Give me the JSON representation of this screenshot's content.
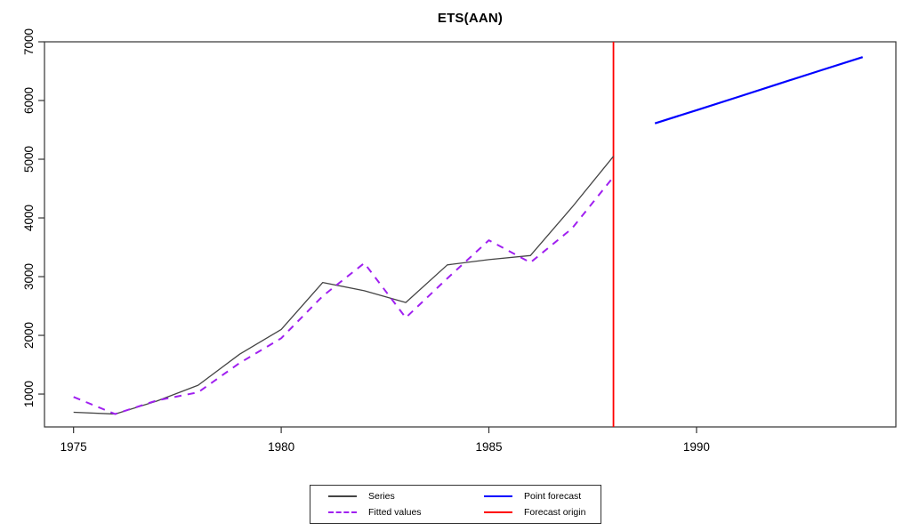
{
  "chart_data": {
    "type": "line",
    "title": "ETS(AAN)",
    "xlabel": "",
    "ylabel": "",
    "xlim": [
      1974.3,
      1994.8
    ],
    "ylim": [
      440,
      7000
    ],
    "x_ticks": [
      1975,
      1980,
      1985,
      1990
    ],
    "y_ticks": [
      1000,
      2000,
      3000,
      4000,
      5000,
      6000,
      7000
    ],
    "grid": false,
    "legend_position": "bottom-center",
    "series": [
      {
        "name": "Series",
        "color": "#444444",
        "style": "solid",
        "width": 1.3,
        "x": [
          1975,
          1976,
          1977,
          1978,
          1979,
          1980,
          1981,
          1982,
          1983,
          1984,
          1985,
          1986,
          1987,
          1988
        ],
        "values": [
          690,
          660,
          880,
          1150,
          1680,
          2100,
          2900,
          2760,
          2560,
          3200,
          3290,
          3360,
          4180,
          5050
        ]
      },
      {
        "name": "Fitted values",
        "color": "#a020f0",
        "style": "dashed",
        "width": 2,
        "x": [
          1975,
          1976,
          1977,
          1978,
          1979,
          1980,
          1981,
          1982,
          1983,
          1984,
          1985,
          1986,
          1987,
          1988
        ],
        "values": [
          950,
          660,
          890,
          1030,
          1530,
          1950,
          2670,
          3230,
          2300,
          2970,
          3620,
          3240,
          3820,
          4700
        ]
      },
      {
        "name": "Point forecast",
        "color": "#0000ff",
        "style": "solid",
        "width": 2.2,
        "x": [
          1989,
          1990,
          1991,
          1992,
          1993,
          1994
        ],
        "values": [
          5610,
          5835,
          6060,
          6290,
          6515,
          6740
        ]
      }
    ],
    "vline": {
      "name": "Forecast origin",
      "color": "#ff0000",
      "x": 1988,
      "width": 1.8
    }
  }
}
